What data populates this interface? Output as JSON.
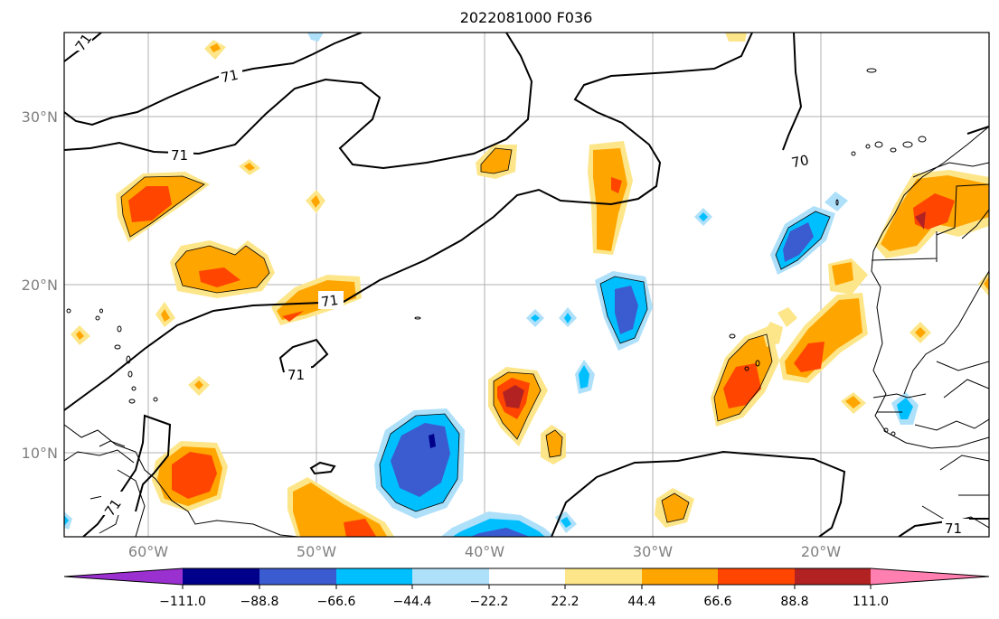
{
  "title": "2022081000 F036",
  "map": {
    "lat_ticks": [
      "30°N",
      "20°N",
      "10°N"
    ],
    "lon_ticks": [
      "60°W",
      "50°W",
      "40°W",
      "30°W",
      "20°W"
    ],
    "contour_labels": [
      "71",
      "71",
      "71",
      "71",
      "71",
      "71",
      "70",
      "71"
    ]
  },
  "colorbar": {
    "tick_labels": [
      "−111.0",
      "−88.8",
      "−66.6",
      "−44.4",
      "−22.2",
      "22.2",
      "44.4",
      "66.6",
      "88.8",
      "111.0"
    ],
    "colors": [
      "#9b30d0",
      "#00008b",
      "#3b5bd0",
      "#00bfff",
      "#aee0fa",
      "#ffffff",
      "#fde68a",
      "#ffa500",
      "#ff4500",
      "#b22222",
      "#ff7fb0"
    ]
  },
  "colors": {
    "purple": "#9b30d0",
    "navy": "#00008b",
    "blue": "#3b5bd0",
    "cyan": "#00bfff",
    "lightblue": "#aee0fa",
    "white": "#ffffff",
    "yellow": "#fde68a",
    "orange": "#ffa500",
    "redorange": "#ff4500",
    "darkred": "#b22222",
    "pink": "#ff7fb0"
  }
}
